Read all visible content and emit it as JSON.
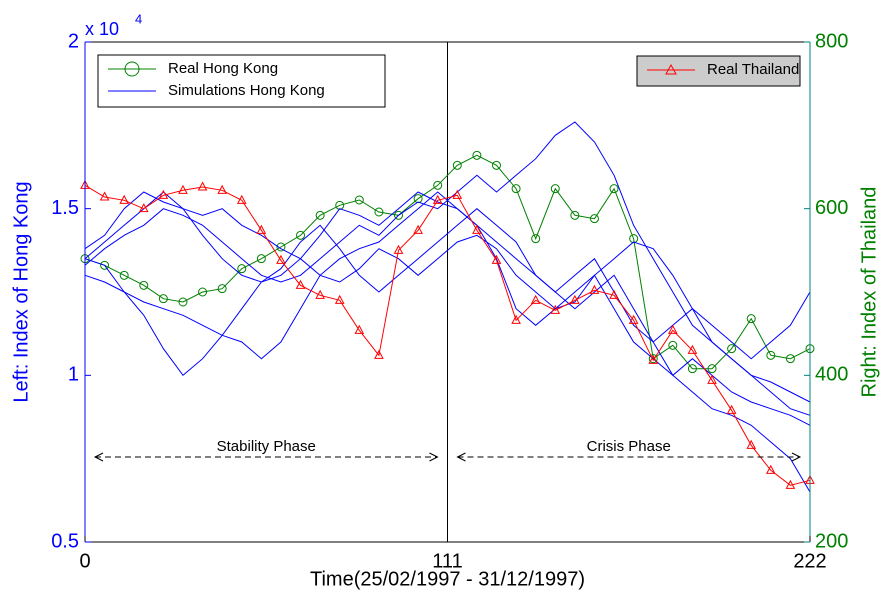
{
  "chart_data": {
    "type": "line",
    "x_label": "Time(25/02/1997 - 31/12/1997)",
    "y_label": "Left: Index of Hong Kong",
    "y2_label": "Right: Index of Thailand",
    "y_multiplier": {
      "base": "x 10",
      "exponent": "4"
    },
    "x": [
      0,
      6,
      12,
      18,
      24,
      30,
      36,
      42,
      48,
      54,
      60,
      66,
      72,
      78,
      84,
      90,
      96,
      102,
      108,
      114,
      120,
      126,
      132,
      138,
      144,
      150,
      156,
      162,
      168,
      174,
      180,
      186,
      192,
      198,
      204,
      210,
      216,
      222
    ],
    "xlim": [
      0,
      222
    ],
    "xticks": [
      0,
      111,
      222
    ],
    "ylim": [
      0.5,
      2
    ],
    "yticks": [
      0.5,
      1,
      1.5,
      2
    ],
    "y2lim": [
      200,
      800
    ],
    "y2ticks": [
      200,
      400,
      600,
      800
    ],
    "vlines": [
      111
    ],
    "annotations": [
      {
        "text": "Stability Phase",
        "x": [
          0,
          111
        ]
      },
      {
        "text": "Crisis Phase",
        "x": [
          111,
          222
        ]
      }
    ],
    "series": [
      {
        "name": "Real Hong Kong",
        "color": "#008000",
        "marker": "circle",
        "values": [
          1.35,
          1.33,
          1.3,
          1.27,
          1.23,
          1.22,
          1.25,
          1.26,
          1.32,
          1.35,
          1.385,
          1.42,
          1.48,
          1.51,
          1.526,
          1.49,
          1.48,
          1.53,
          1.57,
          1.63,
          1.66,
          1.63,
          1.56,
          1.41,
          1.56,
          1.48,
          1.47,
          1.56,
          1.41,
          1.05,
          1.09,
          1.02,
          1.02,
          1.08,
          1.17,
          1.06,
          1.05,
          1.08
        ]
      },
      {
        "name": "Simulations Hong Kong",
        "color": "#0000ff",
        "values": [
          1.35,
          1.33,
          1.25,
          1.18,
          1.08,
          1.0,
          1.05,
          1.12,
          1.2,
          1.28,
          1.3,
          1.35,
          1.42,
          1.5,
          1.48,
          1.45,
          1.5,
          1.55,
          1.52,
          1.5,
          1.45,
          1.35,
          1.2,
          1.15,
          1.2,
          1.25,
          1.3,
          1.2,
          1.1,
          1.05,
          1.0,
          0.95,
          0.9,
          0.88,
          0.85,
          0.8,
          0.75,
          0.65
        ]
      },
      {
        "color": "#0000ff",
        "values": [
          1.33,
          1.38,
          1.42,
          1.45,
          1.5,
          1.48,
          1.45,
          1.4,
          1.35,
          1.3,
          1.28,
          1.3,
          1.35,
          1.4,
          1.45,
          1.42,
          1.48,
          1.52,
          1.5,
          1.55,
          1.6,
          1.55,
          1.6,
          1.65,
          1.72,
          1.76,
          1.7,
          1.6,
          1.45,
          1.35,
          1.25,
          1.15,
          1.1,
          1.05,
          1.0,
          0.95,
          0.9,
          0.88
        ]
      },
      {
        "color": "#0000ff",
        "values": [
          1.35,
          1.4,
          1.45,
          1.5,
          1.55,
          1.5,
          1.42,
          1.35,
          1.3,
          1.28,
          1.32,
          1.4,
          1.45,
          1.38,
          1.3,
          1.25,
          1.3,
          1.35,
          1.4,
          1.45,
          1.5,
          1.45,
          1.4,
          1.3,
          1.25,
          1.3,
          1.35,
          1.25,
          1.15,
          1.1,
          1.15,
          1.2,
          1.15,
          1.1,
          1.05,
          1.1,
          1.15,
          1.25
        ]
      },
      {
        "color": "#0000ff",
        "values": [
          1.3,
          1.28,
          1.25,
          1.22,
          1.2,
          1.18,
          1.15,
          1.12,
          1.1,
          1.05,
          1.1,
          1.2,
          1.3,
          1.35,
          1.38,
          1.4,
          1.45,
          1.5,
          1.55,
          1.5,
          1.45,
          1.4,
          1.35,
          1.3,
          1.25,
          1.2,
          1.25,
          1.3,
          1.2,
          1.1,
          1.0,
          1.05,
          1.0,
          0.95,
          0.92,
          0.9,
          0.88,
          0.85
        ]
      },
      {
        "color": "#0000ff",
        "values": [
          1.38,
          1.42,
          1.5,
          1.55,
          1.52,
          1.5,
          1.48,
          1.5,
          1.45,
          1.42,
          1.38,
          1.35,
          1.3,
          1.28,
          1.32,
          1.38,
          1.35,
          1.3,
          1.35,
          1.4,
          1.42,
          1.38,
          1.3,
          1.25,
          1.2,
          1.22,
          1.3,
          1.35,
          1.4,
          1.38,
          1.3,
          1.2,
          1.1,
          1.05,
          1.0,
          0.98,
          0.95,
          0.92
        ]
      },
      {
        "name": "Real Thailand",
        "color": "#ff0000",
        "marker": "triangle",
        "axis": "y2",
        "values": [
          628,
          614,
          610,
          600,
          616,
          622,
          626,
          622,
          610,
          574,
          538,
          508,
          496,
          490,
          454,
          424,
          550,
          574,
          610,
          616,
          574,
          538,
          466,
          490,
          478,
          490,
          502,
          496,
          466,
          418,
          454,
          430,
          394,
          358,
          316,
          286,
          268,
          274
        ]
      }
    ]
  }
}
